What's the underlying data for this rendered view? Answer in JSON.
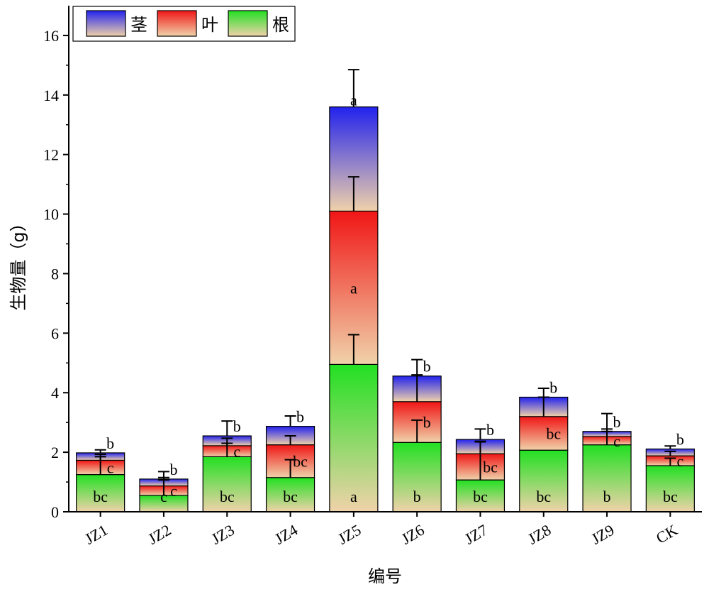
{
  "chart_data": {
    "type": "bar",
    "stacked": true,
    "xlabel": "编号",
    "ylabel": "生物量（g）",
    "ylim": [
      0,
      17
    ],
    "yticks": [
      0,
      2,
      4,
      6,
      8,
      10,
      12,
      14,
      16
    ],
    "grid": false,
    "legend_position": "top-left",
    "categories": [
      "JZ1",
      "JZ2",
      "JZ3",
      "JZ4",
      "JZ5",
      "JZ6",
      "JZ7",
      "JZ8",
      "JZ9",
      "CK"
    ],
    "series": [
      {
        "name": "根",
        "color_top": "#22e022",
        "color_bottom": "#f0d2aa",
        "values": [
          1.25,
          0.55,
          1.85,
          1.15,
          4.95,
          2.33,
          1.07,
          2.07,
          2.25,
          1.55
        ],
        "errors": [
          0.6,
          0.6,
          0.45,
          0.6,
          1.0,
          0.75,
          1.3,
          0.0,
          0.45,
          0.25
        ],
        "letters": [
          "bc",
          "c",
          "bc",
          "bc",
          "a",
          "b",
          "bc",
          "bc",
          "b",
          "bc"
        ]
      },
      {
        "name": "叶",
        "color_top": "#f01616",
        "color_bottom": "#f0d2aa",
        "values": [
          0.48,
          0.32,
          0.37,
          1.1,
          5.15,
          1.37,
          0.88,
          1.13,
          0.28,
          0.33
        ],
        "errors": [
          0.2,
          0.2,
          0.25,
          0.3,
          1.15,
          0.9,
          0.4,
          0.65,
          0.25,
          0.15
        ],
        "letters": [
          "c",
          "c",
          "c",
          "bc",
          "a",
          "b",
          "bc",
          "bc",
          "c",
          "c"
        ]
      },
      {
        "name": "茎",
        "color_top": "#2222ee",
        "color_bottom": "#f0d2aa",
        "values": [
          0.25,
          0.23,
          0.33,
          0.62,
          3.5,
          0.86,
          0.48,
          0.65,
          0.17,
          0.23
        ],
        "errors": [
          0.1,
          0.25,
          0.5,
          0.35,
          1.25,
          0.55,
          0.35,
          0.3,
          0.6,
          0.1
        ],
        "letters": [
          "b",
          "b",
          "b",
          "b",
          "a",
          "b",
          "b",
          "b",
          "b",
          "b"
        ]
      }
    ]
  },
  "legend_order": [
    "茎",
    "叶",
    "根"
  ]
}
